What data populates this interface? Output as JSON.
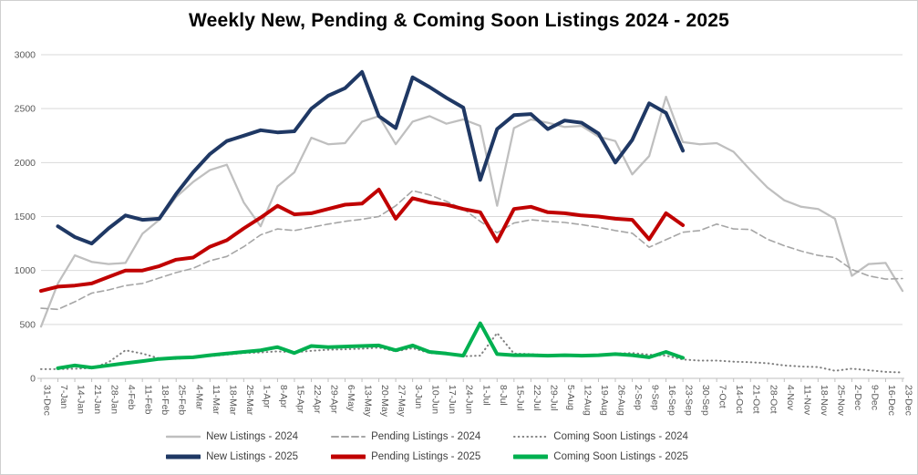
{
  "title": "Weekly New, Pending & Coming Soon Listings 2024 - 2025",
  "chart_data": {
    "type": "line",
    "title": "Weekly New, Pending & Coming Soon Listings 2024 - 2025",
    "xlabel": "",
    "ylabel": "",
    "ylim": [
      0,
      3000
    ],
    "y_ticks": [
      0,
      500,
      1000,
      1500,
      2000,
      2500,
      3000
    ],
    "grid": "horizontal",
    "legend_position": "bottom",
    "x": [
      "31-Dec",
      "7-Jan",
      "14-Jan",
      "21-Jan",
      "28-Jan",
      "4-Feb",
      "11-Feb",
      "18-Feb",
      "25-Feb",
      "4-Mar",
      "11-Mar",
      "18-Mar",
      "25-Mar",
      "1-Apr",
      "8-Apr",
      "15-Apr",
      "22-Apr",
      "29-Apr",
      "6-May",
      "13-May",
      "20-May",
      "27-May",
      "3-Jun",
      "10-Jun",
      "17-Jun",
      "24-Jun",
      "1-Jul",
      "8-Jul",
      "15-Jul",
      "22-Jul",
      "29-Jul",
      "5-Aug",
      "12-Aug",
      "19-Aug",
      "26-Aug",
      "2-Sep",
      "9-Sep",
      "16-Sep",
      "23-Sep",
      "30-Sep",
      "7-Oct",
      "14-Oct",
      "21-Oct",
      "28-Oct",
      "4-Nov",
      "11-Nov",
      "18-Nov",
      "25-Nov",
      "2-Dec",
      "9-Dec",
      "16-Dec",
      "23-Dec"
    ],
    "series": [
      {
        "name": "New Listings - 2024",
        "color": "#BFBFBF",
        "style": "solid",
        "width": 2.25,
        "start_index": 0,
        "values": [
          480,
          880,
          1140,
          1080,
          1060,
          1070,
          1340,
          1470,
          1680,
          1820,
          1930,
          1980,
          1630,
          1410,
          1780,
          1910,
          2230,
          2170,
          2180,
          2380,
          2430,
          2170,
          2380,
          2430,
          2360,
          2400,
          2340,
          1600,
          2320,
          2400,
          2370,
          2330,
          2340,
          2240,
          2200,
          1890,
          2060,
          2610,
          2190,
          2170,
          2180,
          2100,
          1930,
          1770,
          1650,
          1590,
          1570,
          1480,
          950,
          1060,
          1070,
          810
        ]
      },
      {
        "name": "Pending Listings - 2024",
        "color": "#A6A6A6",
        "style": "dashed",
        "width": 1.6,
        "start_index": 0,
        "values": [
          650,
          640,
          710,
          790,
          820,
          860,
          880,
          930,
          980,
          1020,
          1090,
          1130,
          1220,
          1330,
          1385,
          1370,
          1400,
          1430,
          1455,
          1475,
          1500,
          1600,
          1740,
          1700,
          1640,
          1570,
          1455,
          1350,
          1440,
          1470,
          1455,
          1445,
          1425,
          1400,
          1370,
          1345,
          1215,
          1285,
          1355,
          1370,
          1430,
          1385,
          1380,
          1290,
          1230,
          1180,
          1140,
          1120,
          1010,
          950,
          920,
          925
        ]
      },
      {
        "name": "Coming Soon Listings - 2024",
        "color": "#7F7F7F",
        "style": "dotted",
        "width": 2,
        "start_index": 0,
        "values": [
          85,
          85,
          90,
          95,
          150,
          260,
          230,
          185,
          180,
          195,
          205,
          220,
          235,
          240,
          250,
          240,
          255,
          265,
          270,
          275,
          285,
          250,
          280,
          235,
          225,
          205,
          210,
          420,
          230,
          225,
          215,
          215,
          210,
          215,
          230,
          235,
          220,
          210,
          175,
          165,
          165,
          155,
          150,
          140,
          120,
          110,
          105,
          70,
          90,
          75,
          60,
          55
        ]
      },
      {
        "name": "New Listings - 2025",
        "color": "#1F3864",
        "style": "solid",
        "width": 4,
        "start_index": 1,
        "values": [
          1410,
          1310,
          1250,
          1390,
          1510,
          1470,
          1480,
          1710,
          1910,
          2080,
          2200,
          2250,
          2300,
          2280,
          2290,
          2500,
          2620,
          2690,
          2840,
          2430,
          2320,
          2790,
          2700,
          2600,
          2510,
          1840,
          2310,
          2440,
          2450,
          2310,
          2390,
          2370,
          2270,
          2000,
          2210,
          2550,
          2460,
          2110
        ]
      },
      {
        "name": "Pending Listings - 2025",
        "color": "#C00000",
        "style": "solid",
        "width": 4,
        "start_index": 0,
        "values": [
          810,
          850,
          860,
          880,
          940,
          1000,
          1000,
          1040,
          1100,
          1120,
          1220,
          1280,
          1390,
          1490,
          1600,
          1520,
          1530,
          1570,
          1610,
          1620,
          1750,
          1480,
          1670,
          1630,
          1610,
          1570,
          1540,
          1270,
          1570,
          1590,
          1540,
          1530,
          1510,
          1500,
          1480,
          1470,
          1290,
          1530,
          1420
        ]
      },
      {
        "name": "Coming Soon Listings - 2025",
        "color": "#00B050",
        "style": "solid",
        "width": 4,
        "start_index": 1,
        "values": [
          95,
          120,
          100,
          120,
          140,
          160,
          180,
          190,
          195,
          215,
          230,
          245,
          260,
          290,
          235,
          300,
          290,
          295,
          300,
          305,
          260,
          305,
          245,
          230,
          210,
          510,
          225,
          215,
          215,
          210,
          215,
          210,
          215,
          225,
          215,
          195,
          245,
          190
        ]
      }
    ]
  }
}
